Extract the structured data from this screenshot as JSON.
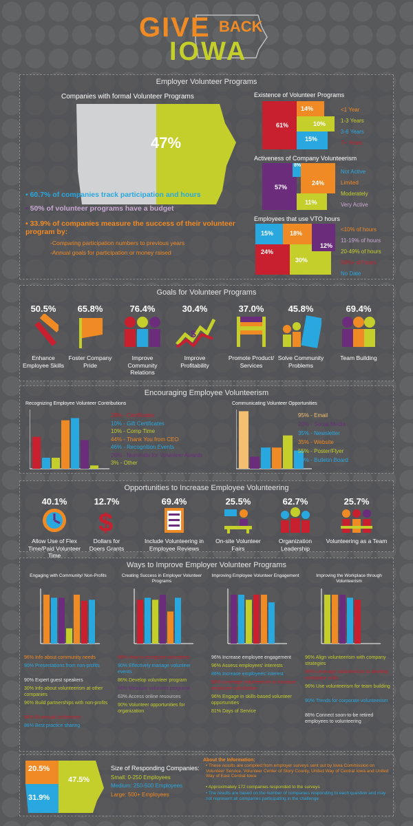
{
  "header": {
    "give": "GIVE",
    "back": "BACK",
    "iowa": "IOWA"
  },
  "colors": {
    "red": "#c8202f",
    "orange": "#f08a24",
    "yellow": "#c4cf2c",
    "blue": "#29a8df",
    "purple": "#6b2d7b",
    "grey": "#d1d2d4",
    "salmon": "#f4c06f"
  },
  "s1": {
    "title": "Employer Volunteer Programs",
    "map_title": "Companies with formal Volunteer Programs",
    "map_pct": "47%",
    "bullets": [
      "60.7% of companies track participation and hours",
      "50% of volunteer programs have a budget",
      "33.9% of companies measure the success of their volunteer program by:"
    ],
    "sub_bullets": [
      "-Comparing participation numbers to previous years",
      "-Annual goals for participation or money raised"
    ],
    "existence": {
      "title": "Existence of Volunteer Programs",
      "labels": [
        "61%",
        "14%",
        "10%",
        "15%"
      ],
      "legend": [
        "<1 Year",
        "1-3 Years",
        "3-6 Years",
        "7+ Years"
      ]
    },
    "activeness": {
      "title": "Activeness of Company Volunteerism",
      "labels": [
        "8%",
        "57%",
        "24%",
        "11%"
      ],
      "legend": [
        "Not Active",
        "Limited",
        "Moderately",
        "Very Active"
      ]
    },
    "vto": {
      "title": "Employees that use VTO hours",
      "labels": [
        "15%",
        "18%",
        "12%",
        "24%",
        "30%"
      ],
      "legend": [
        "<10% of hours",
        "11-19% of hours",
        "20-49% of hours",
        "50%+ of hours",
        "No Date"
      ]
    }
  },
  "s2": {
    "title": "Goals for Volunteer Programs",
    "goals": [
      {
        "pct": "50.5%",
        "label": "Enhance Employee Skills"
      },
      {
        "pct": "65.8%",
        "label": "Foster Company Pride"
      },
      {
        "pct": "76.4%",
        "label": "Improve Community Relations"
      },
      {
        "pct": "30.4%",
        "label": "Improve Profitability"
      },
      {
        "pct": "37.0%",
        "label": "Promote Product/ Services"
      },
      {
        "pct": "45.8%",
        "label": "Solve Community Problems"
      },
      {
        "pct": "69.4%",
        "label": "Team Building"
      }
    ]
  },
  "s3": {
    "title": "Encouraging Employee Volunteerism",
    "left_title": "Recognizing Employee Volunteer Contributions",
    "left_legend": [
      "29% - Certificates",
      "10% - Gift Certificates",
      "10% - Comp Time",
      "44% - Thank You from CEO",
      "46% - Recognition Events",
      "26% - Nominate for Volunteer Awards",
      "3% - Other"
    ],
    "right_title": "Communicating Volunteer Opportunities",
    "right_legend": [
      "95% - Email",
      "20% - Social Media",
      "35% - Newsletter",
      "35% - Website",
      "55% - Poster/Flyer",
      "30% - Bulletin Board"
    ]
  },
  "chart_data": [
    {
      "type": "bar",
      "title": "Recognizing Employee Volunteer Contributions",
      "categories": [
        "Certificates",
        "Gift Certificates",
        "Comp Time",
        "Thank You from CEO",
        "Recognition Events",
        "Nominate for Volunteer Awards",
        "Other"
      ],
      "values": [
        29,
        10,
        10,
        44,
        46,
        26,
        3
      ]
    },
    {
      "type": "bar",
      "title": "Communicating Volunteer Opportunities",
      "categories": [
        "Email",
        "Social Media",
        "Newsletter",
        "Website",
        "Poster/Flyer",
        "Bulletin Board"
      ],
      "values": [
        95,
        20,
        35,
        35,
        55,
        30
      ]
    }
  ],
  "s4": {
    "title": "Opportunities to Increase Employee Volunteering",
    "items": [
      {
        "pct": "40.1%",
        "label": "Allow Use of Flex Time/Paid Volunteer Time"
      },
      {
        "pct": "12.7%",
        "label": "Dollars for Doers Grants"
      },
      {
        "pct": "69.4%",
        "label": "Include Volunteering in Employee Reviews"
      },
      {
        "pct": "25.5%",
        "label": "On-site Volunteer Fairs"
      },
      {
        "pct": "62.7%",
        "label": "Organization Leadership"
      },
      {
        "pct": "25.7%",
        "label": "Volunteering as a Team"
      }
    ]
  },
  "s5": {
    "title": "Ways to Improve Employer Volunteer Programs",
    "cols": [
      {
        "title": "Engaging with Community/ Non-Profits",
        "items": [
          "96% Info about community needs",
          "90% Presentations from non-profits",
          "90% Expert guest speakers",
          "30% Info about volunteerism at other companies",
          "96% Build partnerships with non-profits",
          "84% Bi-annual conference",
          "86% Best practice sharing"
        ]
      },
      {
        "title": "Creating Success in Employer Volunteer Programs",
        "items": [
          "86% How to recognize volunteers",
          "90% Effectively manage volunteer events",
          "86% Develop volunteer program",
          "96% Measure volunteer programs",
          "63% Access online resources",
          "90% Volunteer opportunities for organization"
        ]
      },
      {
        "title": "Improving Employee Volunteer Engagement",
        "items": [
          "96% Increase employee engagement",
          "96% Assess employees' interests",
          "86% Increase employees' interest",
          "96% Leverage volunteerism to increase employee satisfaction",
          "96% Engage in skills-based volunteer opportunities",
          "81% Days of Service"
        ]
      },
      {
        "title": "Improving the Workplace through Volunteerism",
        "items": [
          "96% Align volunteerism with company strategies",
          "96% Leverage volunteerism to develop workplace skills",
          "96% Use volunteerism for team building",
          "90% Trends for corporate volunteerism",
          "86% Connect soon-to-be retired employees to volunteering"
        ]
      }
    ]
  },
  "s6": {
    "map_labels": [
      "20.5%",
      "47.5%",
      "31.9%"
    ],
    "size_title": "Size of Responding Companies:",
    "sizes": [
      "Small: 0-250 Employees",
      "Medium: 250-500 Employees",
      "Large: 500+ Employees"
    ],
    "about_title": "About the Information:",
    "about": [
      "These results are compiled from employer surveys sent out by Iowa Commission on Volunteer Service, Volunteer Center of Story County, United Way of Central Iowa and United Way of East Central Iowa",
      "Approximately 172 companies responded to the surveys",
      "The results are based on the number of companies responding to each question and may not represent all companies participating in the challenge"
    ]
  }
}
